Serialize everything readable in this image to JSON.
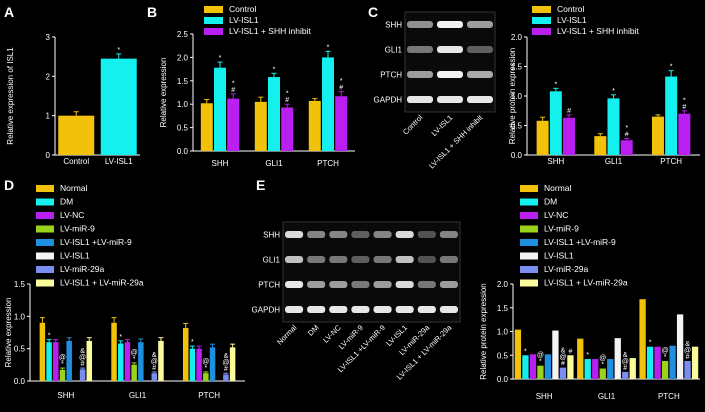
{
  "colors": {
    "background": "#000000",
    "axis": "#ffffff",
    "gold": "#f2c10a",
    "cyan": "#14f0ee",
    "purple": "#b91ff0",
    "olive": "#9bd31a",
    "blue": "#1f8fe0",
    "white": "#f4f4f4",
    "lavender": "#7c8df0",
    "lightyellow": "#fcfb9c",
    "blot_band": "#ffffff"
  },
  "panel_labels": {
    "A": "A",
    "B": "B",
    "C": "C",
    "D": "D",
    "E": "E"
  },
  "blot_c": {
    "rows": [
      "SHH",
      "GLI1",
      "PTCH",
      "GAPDH"
    ],
    "lanes": [
      "Control",
      "LV-ISL1",
      "LV-ISL1 + SHH inhibit"
    ]
  },
  "blot_e": {
    "rows": [
      "SHH",
      "GLI1",
      "PTCH",
      "GAPDH"
    ],
    "lanes": [
      "Normal",
      "DM",
      "LV-NC",
      "LV-miR-9",
      "LV-ISL1 +LV-miR-9",
      "LV-ISL1",
      "LV-miR-29a",
      "LV-ISL1 + LV-miR-29a"
    ]
  },
  "chart_data": [
    {
      "id": "A",
      "type": "bar",
      "ylabel": "Relative expression of ISL1",
      "ylim": [
        0,
        3
      ],
      "yticks": [
        "0",
        "1",
        "2",
        "3"
      ],
      "categories": [
        "Control",
        "LV-ISL1"
      ],
      "values": [
        1.0,
        2.45
      ],
      "errors": [
        0.1,
        0.12
      ],
      "colors": [
        "gold",
        "cyan"
      ],
      "marks": [
        "",
        "*"
      ]
    },
    {
      "id": "B",
      "type": "bar",
      "ylabel": "Relative expression",
      "ylim": [
        0,
        2.5
      ],
      "yticks": [
        "0.0",
        "0.5",
        "1.0",
        "1.5",
        "2.0",
        "2.5"
      ],
      "categories": [
        "SHH",
        "GLI1",
        "PTCH"
      ],
      "legend": [
        "Control",
        "LV-ISL1",
        "LV-ISL1 + SHH inhibit"
      ],
      "colors": [
        "gold",
        "cyan",
        "purple"
      ],
      "values": [
        [
          1.02,
          1.78,
          1.12
        ],
        [
          1.05,
          1.58,
          0.93
        ],
        [
          1.07,
          2.0,
          1.17
        ]
      ],
      "errors": [
        [
          0.08,
          0.12,
          0.1
        ],
        [
          0.1,
          0.08,
          0.07
        ],
        [
          0.05,
          0.13,
          0.1
        ]
      ],
      "marks": [
        [
          "",
          "*",
          "*\n#"
        ],
        [
          "",
          "*",
          "*\n#"
        ],
        [
          "",
          "*",
          "*\n#"
        ]
      ]
    },
    {
      "id": "C",
      "type": "bar",
      "ylabel": "Relative protein expression",
      "ylim": [
        0,
        2.0
      ],
      "yticks": [
        "0.0",
        "0.5",
        "1.0",
        "1.5",
        "2.0"
      ],
      "categories": [
        "SHH",
        "GLI1",
        "PTCH"
      ],
      "legend": [
        "Control",
        "LV-ISL1",
        "LV-ISL1 + SHH inhibit"
      ],
      "colors": [
        "gold",
        "cyan",
        "purple"
      ],
      "values": [
        [
          0.58,
          1.08,
          0.63
        ],
        [
          0.32,
          0.96,
          0.25
        ],
        [
          0.65,
          1.33,
          0.7
        ]
      ],
      "errors": [
        [
          0.06,
          0.05,
          0.05
        ],
        [
          0.04,
          0.06,
          0.03
        ],
        [
          0.03,
          0.1,
          0.05
        ]
      ],
      "marks": [
        [
          "",
          "*",
          "#"
        ],
        [
          "",
          "*",
          "*\n#"
        ],
        [
          "",
          "*",
          "*\n#"
        ]
      ]
    },
    {
      "id": "D",
      "type": "bar",
      "ylabel": "Relative expression",
      "ylim": [
        0,
        1.5
      ],
      "yticks": [
        "0.0",
        "0.5",
        "1.0",
        "1.5"
      ],
      "categories": [
        "SHH",
        "GLI1",
        "PTCH"
      ],
      "legend": [
        "Normal",
        "DM",
        "LV-NC",
        "LV-miR-9",
        "LV-ISL1 +LV-miR-9",
        "LV-ISL1",
        "LV-miR-29a",
        "LV-ISL1 + LV-miR-29a"
      ],
      "colors": [
        "gold",
        "cyan",
        "purple",
        "olive",
        "blue",
        "white",
        "lavender",
        "lightyellow"
      ],
      "values": [
        [
          0.9,
          0.6,
          0.6,
          0.17,
          0.62,
          0.0,
          0.18,
          0.62
        ],
        [
          0.9,
          0.58,
          0.6,
          0.25,
          0.6,
          0.0,
          0.12,
          0.62
        ],
        [
          0.82,
          0.5,
          0.5,
          0.12,
          0.52,
          0.0,
          0.1,
          0.52
        ]
      ],
      "errors": [
        [
          0.08,
          0.04,
          0.04,
          0.03,
          0.05,
          0.0,
          0.02,
          0.05
        ],
        [
          0.08,
          0.04,
          0.04,
          0.03,
          0.05,
          0.0,
          0.02,
          0.05
        ],
        [
          0.07,
          0.04,
          0.04,
          0.02,
          0.05,
          0.0,
          0.02,
          0.05
        ]
      ],
      "marks": [
        [
          "",
          "*",
          "",
          "@\n*",
          "",
          "",
          "&\n@\n#",
          ""
        ],
        [
          "",
          "*",
          "",
          "@\n*",
          "",
          "",
          "&\n@\n#",
          ""
        ],
        [
          "",
          "*",
          "",
          "@\n*",
          "",
          "",
          "&\n@\n#",
          ""
        ]
      ]
    },
    {
      "id": "E",
      "type": "bar",
      "ylabel": "Relative protein expression",
      "ylim": [
        0,
        2.0
      ],
      "yticks": [
        "0.0",
        "0.5",
        "1.0",
        "1.5",
        "2.0"
      ],
      "categories": [
        "SHH",
        "GLI1",
        "PTCH"
      ],
      "legend": [
        "Normal",
        "DM",
        "LV-NC",
        "LV-miR-9",
        "LV-ISL1 +LV-miR-9",
        "LV-ISL1",
        "LV-miR-29a",
        "LV-ISL1 + LV-miR-29a"
      ],
      "colors": [
        "gold",
        "cyan",
        "purple",
        "olive",
        "blue",
        "white",
        "lavender",
        "lightyellow"
      ],
      "values": [
        [
          1.04,
          0.5,
          0.52,
          0.28,
          0.52,
          1.02,
          0.24,
          0.5
        ],
        [
          0.85,
          0.42,
          0.42,
          0.22,
          0.42,
          0.86,
          0.15,
          0.44
        ],
        [
          1.68,
          0.68,
          0.68,
          0.38,
          0.7,
          1.36,
          0.38,
          0.68
        ]
      ],
      "errors": [
        [
          0,
          0,
          0,
          0,
          0,
          0,
          0,
          0
        ],
        [
          0,
          0,
          0,
          0,
          0,
          0,
          0,
          0
        ],
        [
          0,
          0,
          0,
          0,
          0,
          0,
          0,
          0
        ]
      ],
      "marks": [
        [
          "",
          "*",
          "",
          "@\n*",
          "",
          "",
          "&\n@\n#",
          "#"
        ],
        [
          "",
          "*",
          "",
          "@\n*",
          "",
          "",
          "&\n@\n#",
          ""
        ],
        [
          "",
          "*",
          "",
          "@\n*",
          "",
          "",
          "&\n@\n#",
          ""
        ]
      ]
    }
  ]
}
